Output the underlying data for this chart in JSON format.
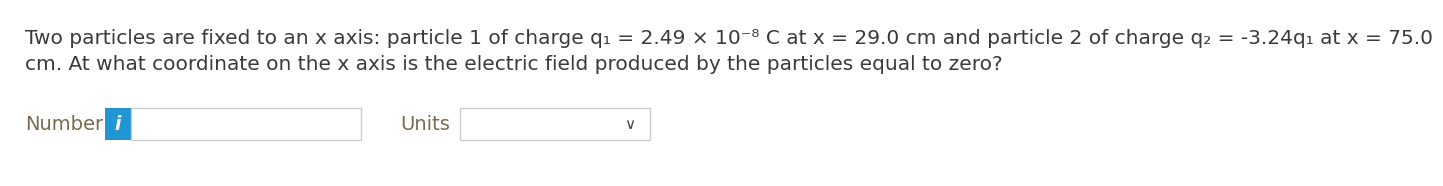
{
  "background_color": "#ffffff",
  "text_line1": "Two particles are fixed to an x axis: particle 1 of charge q₁ = 2.49 × 10⁻⁸ C at x = 29.0 cm and particle 2 of charge q₂ = -3.24q₁ at x = 75.0",
  "text_line2": "cm. At what coordinate on the x axis is the electric field produced by the particles equal to zero?",
  "text_color": "#3a3a3a",
  "label_color": "#7a6a50",
  "label_number": "Number",
  "label_units": "Units",
  "info_button_color": "#2196d3",
  "info_button_text": "i",
  "info_button_text_color": "#ffffff",
  "input_box_color": "#ffffff",
  "input_box_border": "#cccccc",
  "dropdown_color": "#ffffff",
  "dropdown_border": "#cccccc",
  "font_size_text": 14.5,
  "font_size_label": 14.0,
  "font_size_info": 13.5
}
